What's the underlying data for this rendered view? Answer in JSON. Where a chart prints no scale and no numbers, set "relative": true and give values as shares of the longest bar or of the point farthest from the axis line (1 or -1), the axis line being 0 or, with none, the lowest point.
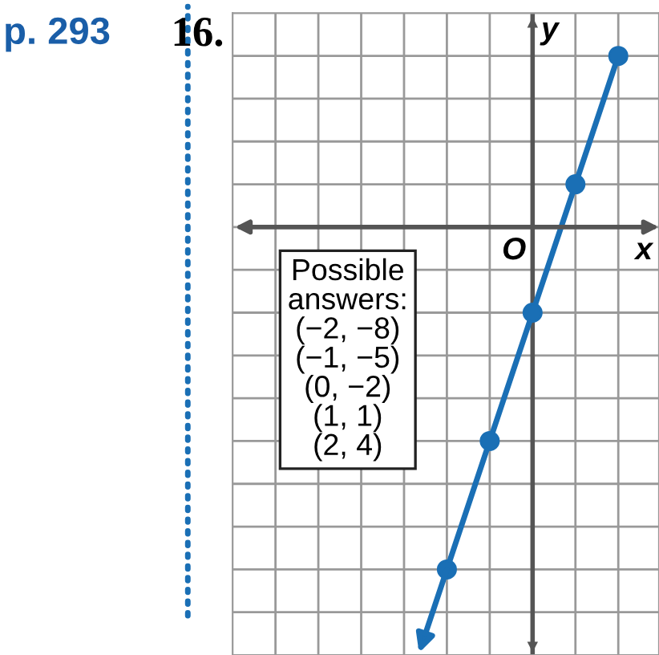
{
  "chart_data": {
    "type": "line",
    "title": "16.",
    "xlabel": "x",
    "ylabel": "y",
    "annotations": [
      "O",
      "Possible\nanswers:\n(−2, −8)\n(−1, −5)\n(0, −2)\n(1, 1)\n(2, 4)",
      "p. 293"
    ],
    "categories": [
      null,
      null,
      null,
      null,
      null
    ],
    "relative": true,
    "series": [
      {
        "color": "#1a6fb5",
        "values": [
          -1,
          -0.625,
          -0.25,
          0.125,
          0.5
        ]
      }
    ],
    "marker": "circle",
    "grid": true
  }
}
